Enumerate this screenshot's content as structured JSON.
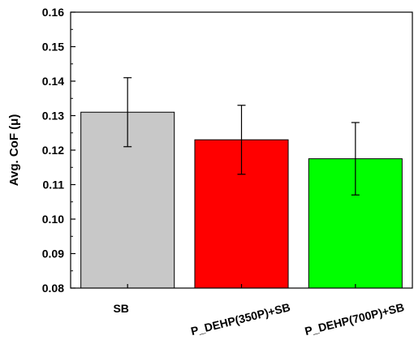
{
  "chart_data": {
    "type": "bar",
    "title": "",
    "xlabel": "",
    "ylabel": "Avg. CoF (μ)",
    "ylim": [
      0.08,
      0.16
    ],
    "yticks": [
      "0.08",
      "0.09",
      "0.10",
      "0.11",
      "0.12",
      "0.13",
      "0.14",
      "0.15",
      "0.16"
    ],
    "categories": [
      "SB",
      "P_DEHP(350P)+SB",
      "P_DEHP(700P)+SB"
    ],
    "values": [
      0.131,
      0.123,
      0.1175
    ],
    "errors": [
      0.01,
      0.01,
      0.0105
    ],
    "colors": [
      "#c8c8c8",
      "#ff0000",
      "#00ff00"
    ],
    "grid": false,
    "legend": "none"
  }
}
